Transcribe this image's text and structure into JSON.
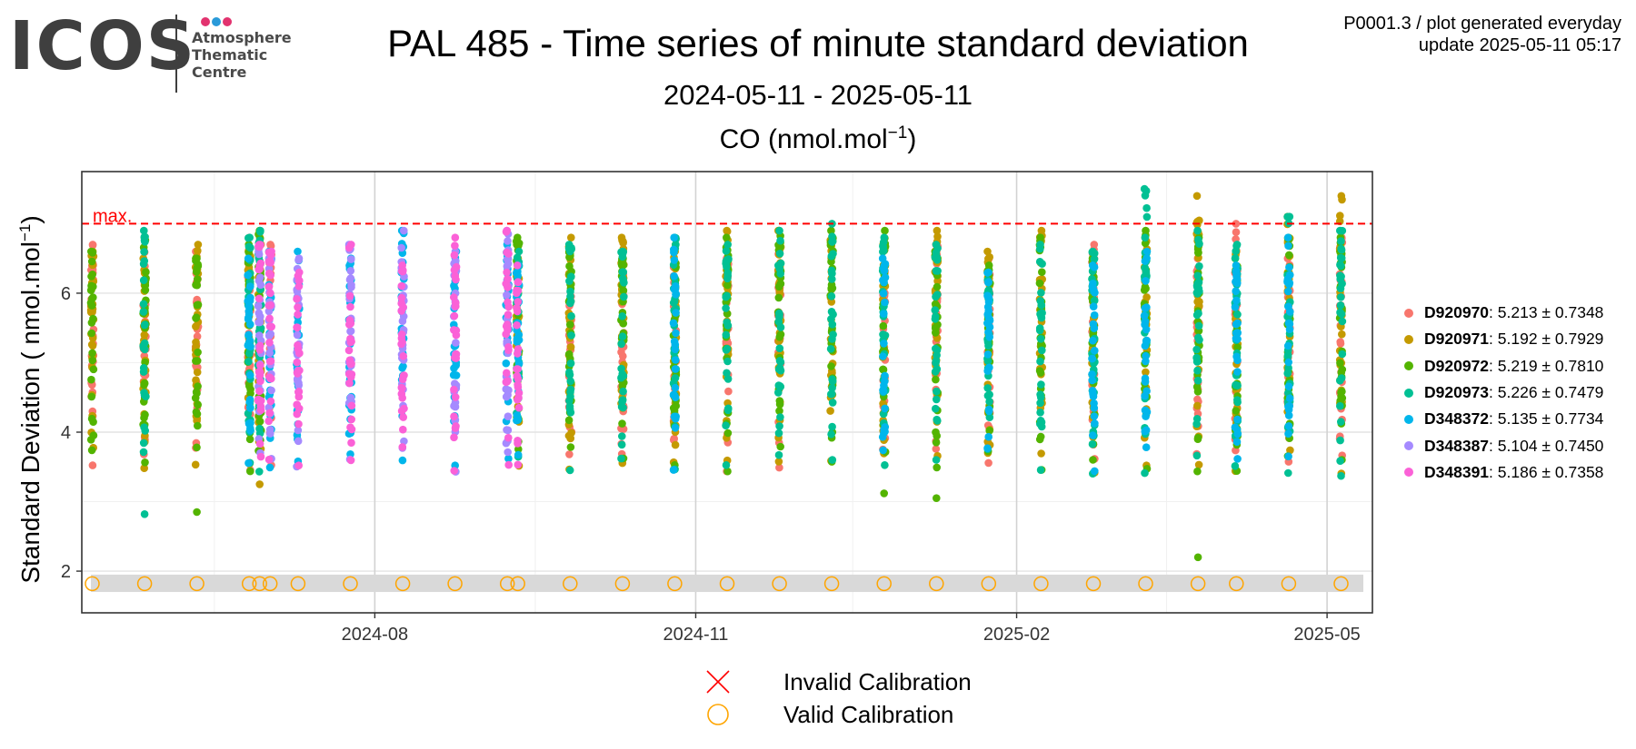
{
  "logo": {
    "word": "ICOS",
    "line1": "Atmosphere",
    "line2": "Thematic",
    "line3": "Centre",
    "dot_colors": [
      "#e2336f",
      "#2a9ad9",
      "#e2336f"
    ]
  },
  "title": "PAL 485 - Time series of minute standard deviation",
  "subtitle": "2024-05-11 - 2025-05-11",
  "meta": {
    "line1": "P0001.3 / plot generated everyday",
    "line2": "update  2025-05-11 05:17"
  },
  "chart_data": {
    "type": "scatter",
    "panel_title": {
      "text": "CO (nmol.mol",
      "sup": "−1",
      "close": ")"
    },
    "ylabel": {
      "text": "Standard Deviation ( nmol.mol",
      "sup": "−1",
      "close": ")"
    },
    "xlim": [
      "2024-05-09",
      "2025-05-14"
    ],
    "ylim": [
      1.4,
      7.75
    ],
    "x_ticks": [
      {
        "date": "2024-08-01",
        "label": "2024-08"
      },
      {
        "date": "2024-11-01",
        "label": "2024-11"
      },
      {
        "date": "2025-02-01",
        "label": "2025-02"
      },
      {
        "date": "2025-05-01",
        "label": "2025-05"
      }
    ],
    "y_ticks": [
      2,
      4,
      6
    ],
    "grid": true,
    "max_line": {
      "value": 7.0,
      "label": "max.",
      "color": "#ff0000"
    },
    "calibration_band": {
      "ymin": 1.7,
      "ymax": 1.95,
      "color": "#d9d9d9"
    },
    "valid_calibration_y": 1.82,
    "calibration_dates": [
      "2024-05-12",
      "2024-05-27",
      "2024-06-11",
      "2024-06-26",
      "2024-06-29",
      "2024-07-02",
      "2024-07-10",
      "2024-07-25",
      "2024-08-09",
      "2024-08-24",
      "2024-09-08",
      "2024-09-11",
      "2024-09-26",
      "2024-10-11",
      "2024-10-26",
      "2024-11-10",
      "2024-11-25",
      "2024-12-10",
      "2024-12-25",
      "2025-01-09",
      "2025-01-24",
      "2025-02-08",
      "2025-02-23",
      "2025-03-10",
      "2025-03-25",
      "2025-04-05",
      "2025-04-20",
      "2025-05-05"
    ],
    "series": [
      {
        "id": "D920970",
        "stat": ": 5.213 ± 0.7348",
        "color": "#f8766d",
        "dates": [
          "2024-05-12",
          "2024-05-27",
          "2024-06-11",
          "2024-06-26",
          "2024-07-02",
          "2024-09-26",
          "2024-10-11",
          "2024-10-26",
          "2024-11-10",
          "2024-11-25",
          "2024-12-25",
          "2025-01-09",
          "2025-01-24",
          "2025-02-23",
          "2025-03-25",
          "2025-04-05",
          "2025-04-20",
          "2025-05-05"
        ],
        "max": [
          6.7,
          6.6,
          6.6,
          6.8,
          6.7,
          6.3,
          6.3,
          6.6,
          6.5,
          6.7,
          6.3,
          6.7,
          6.5,
          6.7,
          6.5,
          7.0,
          6.5,
          6.8
        ]
      },
      {
        "id": "D920971",
        "stat": ": 5.192 ± 0.7929",
        "color": "#c49a00",
        "dates": [
          "2024-05-12",
          "2024-05-27",
          "2024-06-11",
          "2024-06-26",
          "2024-06-29",
          "2024-09-11",
          "2024-09-26",
          "2024-10-11",
          "2024-10-26",
          "2024-11-10",
          "2024-11-25",
          "2024-12-10",
          "2024-12-25",
          "2025-01-09",
          "2025-01-24",
          "2025-02-08",
          "2025-02-23",
          "2025-03-10",
          "2025-03-25",
          "2025-04-05",
          "2025-04-20",
          "2025-05-05"
        ],
        "max": [
          6.6,
          6.5,
          6.7,
          6.6,
          6.8,
          6.5,
          6.8,
          6.8,
          6.6,
          6.9,
          6.9,
          6.8,
          6.7,
          6.9,
          6.6,
          6.9,
          6.2,
          6.8,
          7.4,
          6.6,
          7.1,
          7.4
        ]
      },
      {
        "id": "D920972",
        "stat": ": 5.219 ± 0.7810",
        "color": "#53b400",
        "dates": [
          "2024-05-12",
          "2024-05-27",
          "2024-06-11",
          "2024-06-26",
          "2024-06-29",
          "2024-09-11",
          "2024-09-26",
          "2024-10-11",
          "2024-10-26",
          "2024-11-10",
          "2024-11-25",
          "2024-12-10",
          "2024-12-25",
          "2025-01-09",
          "2025-01-24",
          "2025-02-08",
          "2025-02-23",
          "2025-03-10",
          "2025-03-25",
          "2025-04-05",
          "2025-04-20",
          "2025-05-05"
        ],
        "max": [
          6.6,
          6.8,
          6.5,
          6.7,
          6.9,
          6.8,
          6.6,
          6.5,
          6.7,
          6.8,
          6.9,
          6.9,
          6.9,
          6.6,
          6.4,
          6.8,
          6.5,
          6.9,
          6.8,
          6.5,
          6.8,
          6.8
        ]
      },
      {
        "id": "D920973",
        "stat": ": 5.226 ± 0.7479",
        "color": "#00c094",
        "dates": [
          "2024-05-27",
          "2024-06-26",
          "2024-06-29",
          "2024-09-11",
          "2024-09-26",
          "2024-10-11",
          "2024-10-26",
          "2024-11-10",
          "2024-11-25",
          "2024-12-10",
          "2024-12-25",
          "2025-01-09",
          "2025-01-24",
          "2025-02-08",
          "2025-02-23",
          "2025-03-10",
          "2025-03-25",
          "2025-04-05",
          "2025-04-20",
          "2025-05-05"
        ],
        "max": [
          6.9,
          6.8,
          6.9,
          6.6,
          6.7,
          6.6,
          6.8,
          6.7,
          6.9,
          7.0,
          6.8,
          6.7,
          6.3,
          6.7,
          6.6,
          7.5,
          6.9,
          6.7,
          7.1,
          6.9
        ]
      },
      {
        "id": "D348372",
        "stat": ": 5.135 ± 0.7734",
        "color": "#00b6eb",
        "dates": [
          "2024-06-26",
          "2024-07-02",
          "2024-07-10",
          "2024-07-25",
          "2024-08-09",
          "2024-08-24",
          "2024-09-08",
          "2024-09-11",
          "2024-10-26",
          "2024-12-25",
          "2025-01-24",
          "2025-02-23",
          "2025-03-10",
          "2025-04-05",
          "2025-04-20"
        ],
        "max": [
          6.5,
          6.6,
          6.6,
          6.5,
          6.9,
          6.6,
          6.7,
          6.4,
          6.8,
          6.5,
          6.3,
          6.4,
          6.6,
          6.4,
          6.8
        ]
      },
      {
        "id": "D348387",
        "stat": ": 5.104 ± 0.7450",
        "color": "#a58aff",
        "dates": [
          "2024-06-29",
          "2024-07-02",
          "2024-07-10",
          "2024-07-25",
          "2024-08-09",
          "2024-08-24",
          "2024-09-08"
        ],
        "max": [
          6.6,
          6.5,
          6.5,
          6.7,
          6.9,
          6.6,
          6.9
        ]
      },
      {
        "id": "D348391",
        "stat": ": 5.186 ± 0.7358",
        "color": "#fb61d7",
        "dates": [
          "2024-06-29",
          "2024-07-02",
          "2024-07-10",
          "2024-07-25",
          "2024-08-09",
          "2024-08-24",
          "2024-09-08",
          "2024-09-11"
        ],
        "max": [
          6.7,
          6.6,
          6.3,
          6.7,
          6.4,
          6.8,
          6.9,
          6.4
        ]
      }
    ],
    "calibration_legend": [
      {
        "label": "Invalid Calibration",
        "symbol": "cross",
        "color": "#ff0000"
      },
      {
        "label": "Valid Calibration",
        "symbol": "circle",
        "color": "#ffa500"
      }
    ]
  }
}
